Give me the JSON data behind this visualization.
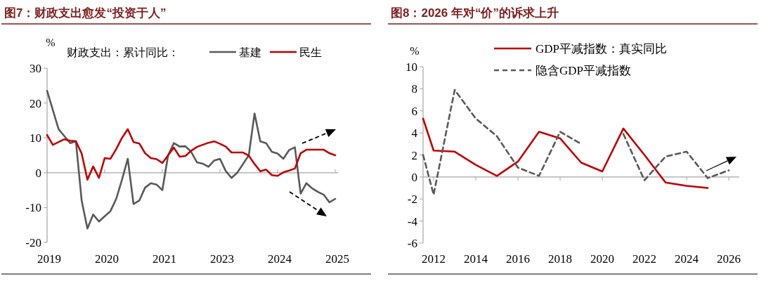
{
  "chart_data": [
    {
      "type": "line",
      "title": "图7：财政支出愈发“投资于人”",
      "ylabel": "%",
      "legend_title": "财政支出：累计同比：",
      "legend": "top",
      "categories": [
        "2019",
        null,
        null,
        null,
        null,
        null,
        null,
        null,
        null,
        null,
        "2020",
        null,
        null,
        null,
        null,
        null,
        null,
        null,
        null,
        null,
        "2021",
        null,
        null,
        null,
        null,
        null,
        null,
        null,
        null,
        null,
        "2023",
        null,
        null,
        null,
        null,
        null,
        null,
        null,
        null,
        null,
        "2024",
        null,
        null,
        null,
        null,
        null,
        null,
        null,
        null,
        null,
        "2025"
      ],
      "ylim": [
        -20,
        30
      ],
      "yticks": [
        -20,
        -10,
        0,
        10,
        20,
        30
      ],
      "series": [
        {
          "name": "基建",
          "color": "#595959",
          "values": [
            23.5,
            18,
            12.5,
            10.5,
            8.5,
            9,
            -8,
            -16,
            -12,
            -14,
            -12.5,
            -11,
            -7.5,
            -2,
            4,
            -9,
            -8,
            -4.3,
            -3,
            -3.4,
            -5,
            5,
            8.5,
            7.5,
            7.6,
            6,
            3,
            2.6,
            1.7,
            3.5,
            4,
            0.5,
            -1.5,
            0,
            2.5,
            5,
            17,
            9,
            8.5,
            6,
            5.5,
            4,
            6.5,
            7.3,
            -6,
            -3,
            -4.5,
            -5.5,
            -6.3,
            -8.5,
            -7.5
          ]
        },
        {
          "name": "民生",
          "color": "#c00000",
          "values": [
            10.8,
            8,
            8.8,
            9.6,
            9.2,
            9,
            5.5,
            -2,
            1.8,
            -1.5,
            4.2,
            4,
            6.8,
            10,
            12.5,
            8.8,
            8.4,
            5.6,
            4.2,
            3.9,
            2.8,
            5,
            7.2,
            4.6,
            4.8,
            6.3,
            7.4,
            8,
            8.6,
            9,
            8.3,
            7.5,
            5.8,
            5.8,
            5.8,
            4.9,
            2.5,
            0.4,
            0.9,
            -0.7,
            -0.9,
            0.1,
            0.6,
            1.2,
            5.6,
            6.6,
            6.6,
            6.6,
            6.6,
            5.6,
            5
          ]
        }
      ]
    },
    {
      "type": "line",
      "title": "图8：2026 年对“价”的诉求上升",
      "ylabel": "%",
      "legend": "top",
      "xlim": [
        2011.5,
        2026.5
      ],
      "xticks": [
        2012,
        2014,
        2016,
        2018,
        2020,
        2022,
        2024,
        2026
      ],
      "ylim": [
        -6,
        10
      ],
      "yticks": [
        -6,
        -4,
        -2,
        0,
        2,
        4,
        6,
        8,
        10
      ],
      "series": [
        {
          "name": "GDP平减指数：真实同比",
          "color": "#c00000",
          "line_style": "solid",
          "x": [
            2011.5,
            2012,
            2013,
            2014,
            2015,
            2016,
            2017,
            2018,
            2019,
            2020,
            2021,
            2022,
            2023,
            2024,
            2025
          ],
          "values": [
            5.3,
            2.4,
            2.3,
            1.1,
            0.1,
            1.4,
            4.1,
            3.5,
            1.3,
            0.5,
            4.4,
            2.0,
            -0.5,
            -0.8,
            -1.0
          ]
        },
        {
          "name": "隐含GDP平减指数",
          "color": "#595959",
          "line_style": "dashed",
          "x": [
            2011.5,
            2012,
            2013,
            2014,
            2015,
            2016,
            2017,
            2018,
            2019,
            2020,
            2021,
            2022,
            2023,
            2024,
            2025,
            2026
          ],
          "values": [
            2.0,
            -1.6,
            7.9,
            5.3,
            3.7,
            0.85,
            0.1,
            4.1,
            3.0,
            null,
            3.9,
            -0.3,
            1.85,
            2.3,
            -0.1,
            0.6
          ]
        }
      ]
    }
  ]
}
